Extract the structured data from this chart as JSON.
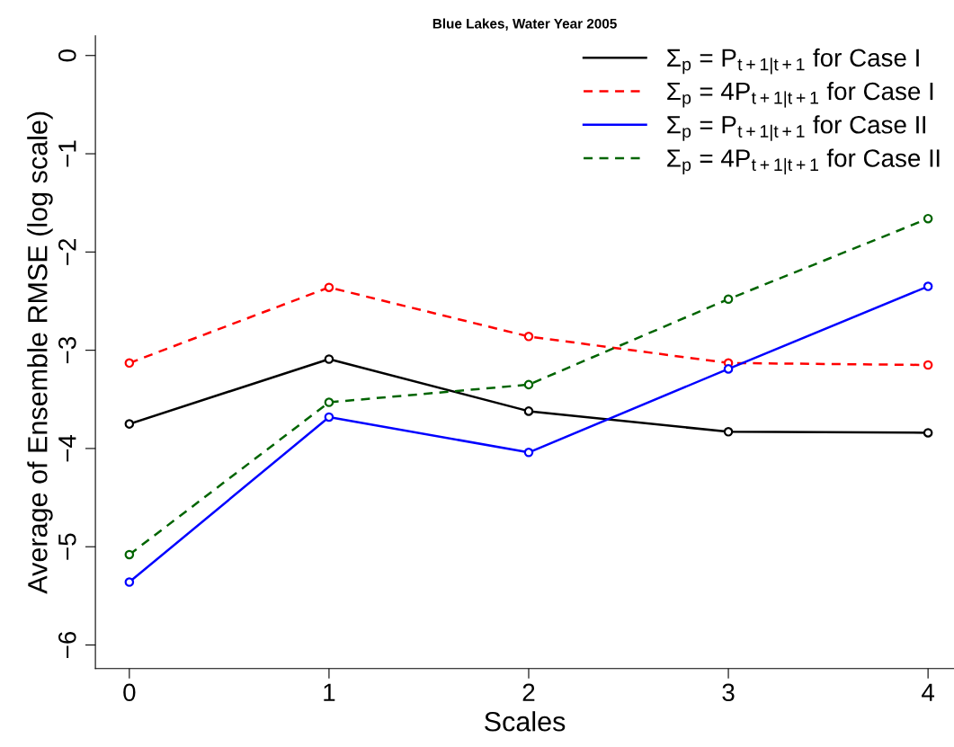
{
  "chart_data": {
    "type": "line",
    "title": "Blue Lakes, Water Year 2005",
    "xlabel": "Scales",
    "ylabel": "Average of Ensemble RMSE (log scale)",
    "x": [
      0,
      1,
      2,
      3,
      4
    ],
    "series": [
      {
        "name": "Σ$_{p}$ = P$_{t+1|t+1}$ for Case I",
        "color": "#000000",
        "line_style": "solid",
        "values": [
          -3.75,
          -3.09,
          -3.62,
          -3.83,
          -3.84
        ]
      },
      {
        "name": "Σ$_{p}$ = 4P$_{t+1|t+1}$ for Case I",
        "color": "#ff0000",
        "line_style": "dashed",
        "values": [
          -3.13,
          -2.36,
          -2.86,
          -3.13,
          -3.15
        ]
      },
      {
        "name": "Σ$_{p}$ = P$_{t+1|t+1}$ for Case II",
        "color": "#0000ff",
        "line_style": "solid",
        "values": [
          -5.36,
          -3.68,
          -4.04,
          -3.19,
          -2.35
        ]
      },
      {
        "name": "Σ$_{p}$ = 4P$_{t+1|t+1}$ for Case II",
        "color": "#006400",
        "line_style": "dashed",
        "values": [
          -5.08,
          -3.53,
          -3.35,
          -2.48,
          -1.66
        ]
      }
    ],
    "xlim": [
      -0.17,
      4.13
    ],
    "ylim": [
      -6.24,
      0.2
    ],
    "xticks": [
      0,
      1,
      2,
      3,
      4
    ],
    "yticks": [
      {
        "value": 0,
        "label": "0"
      },
      {
        "value": -1,
        "label": "−1"
      },
      {
        "value": -2,
        "label": "−2"
      },
      {
        "value": -3,
        "label": "−3"
      },
      {
        "value": -4,
        "label": "−4"
      },
      {
        "value": -5,
        "label": "−5"
      },
      {
        "value": -6,
        "label": "−6"
      }
    ],
    "marker": "circle",
    "grid": false,
    "legend": "top right"
  }
}
